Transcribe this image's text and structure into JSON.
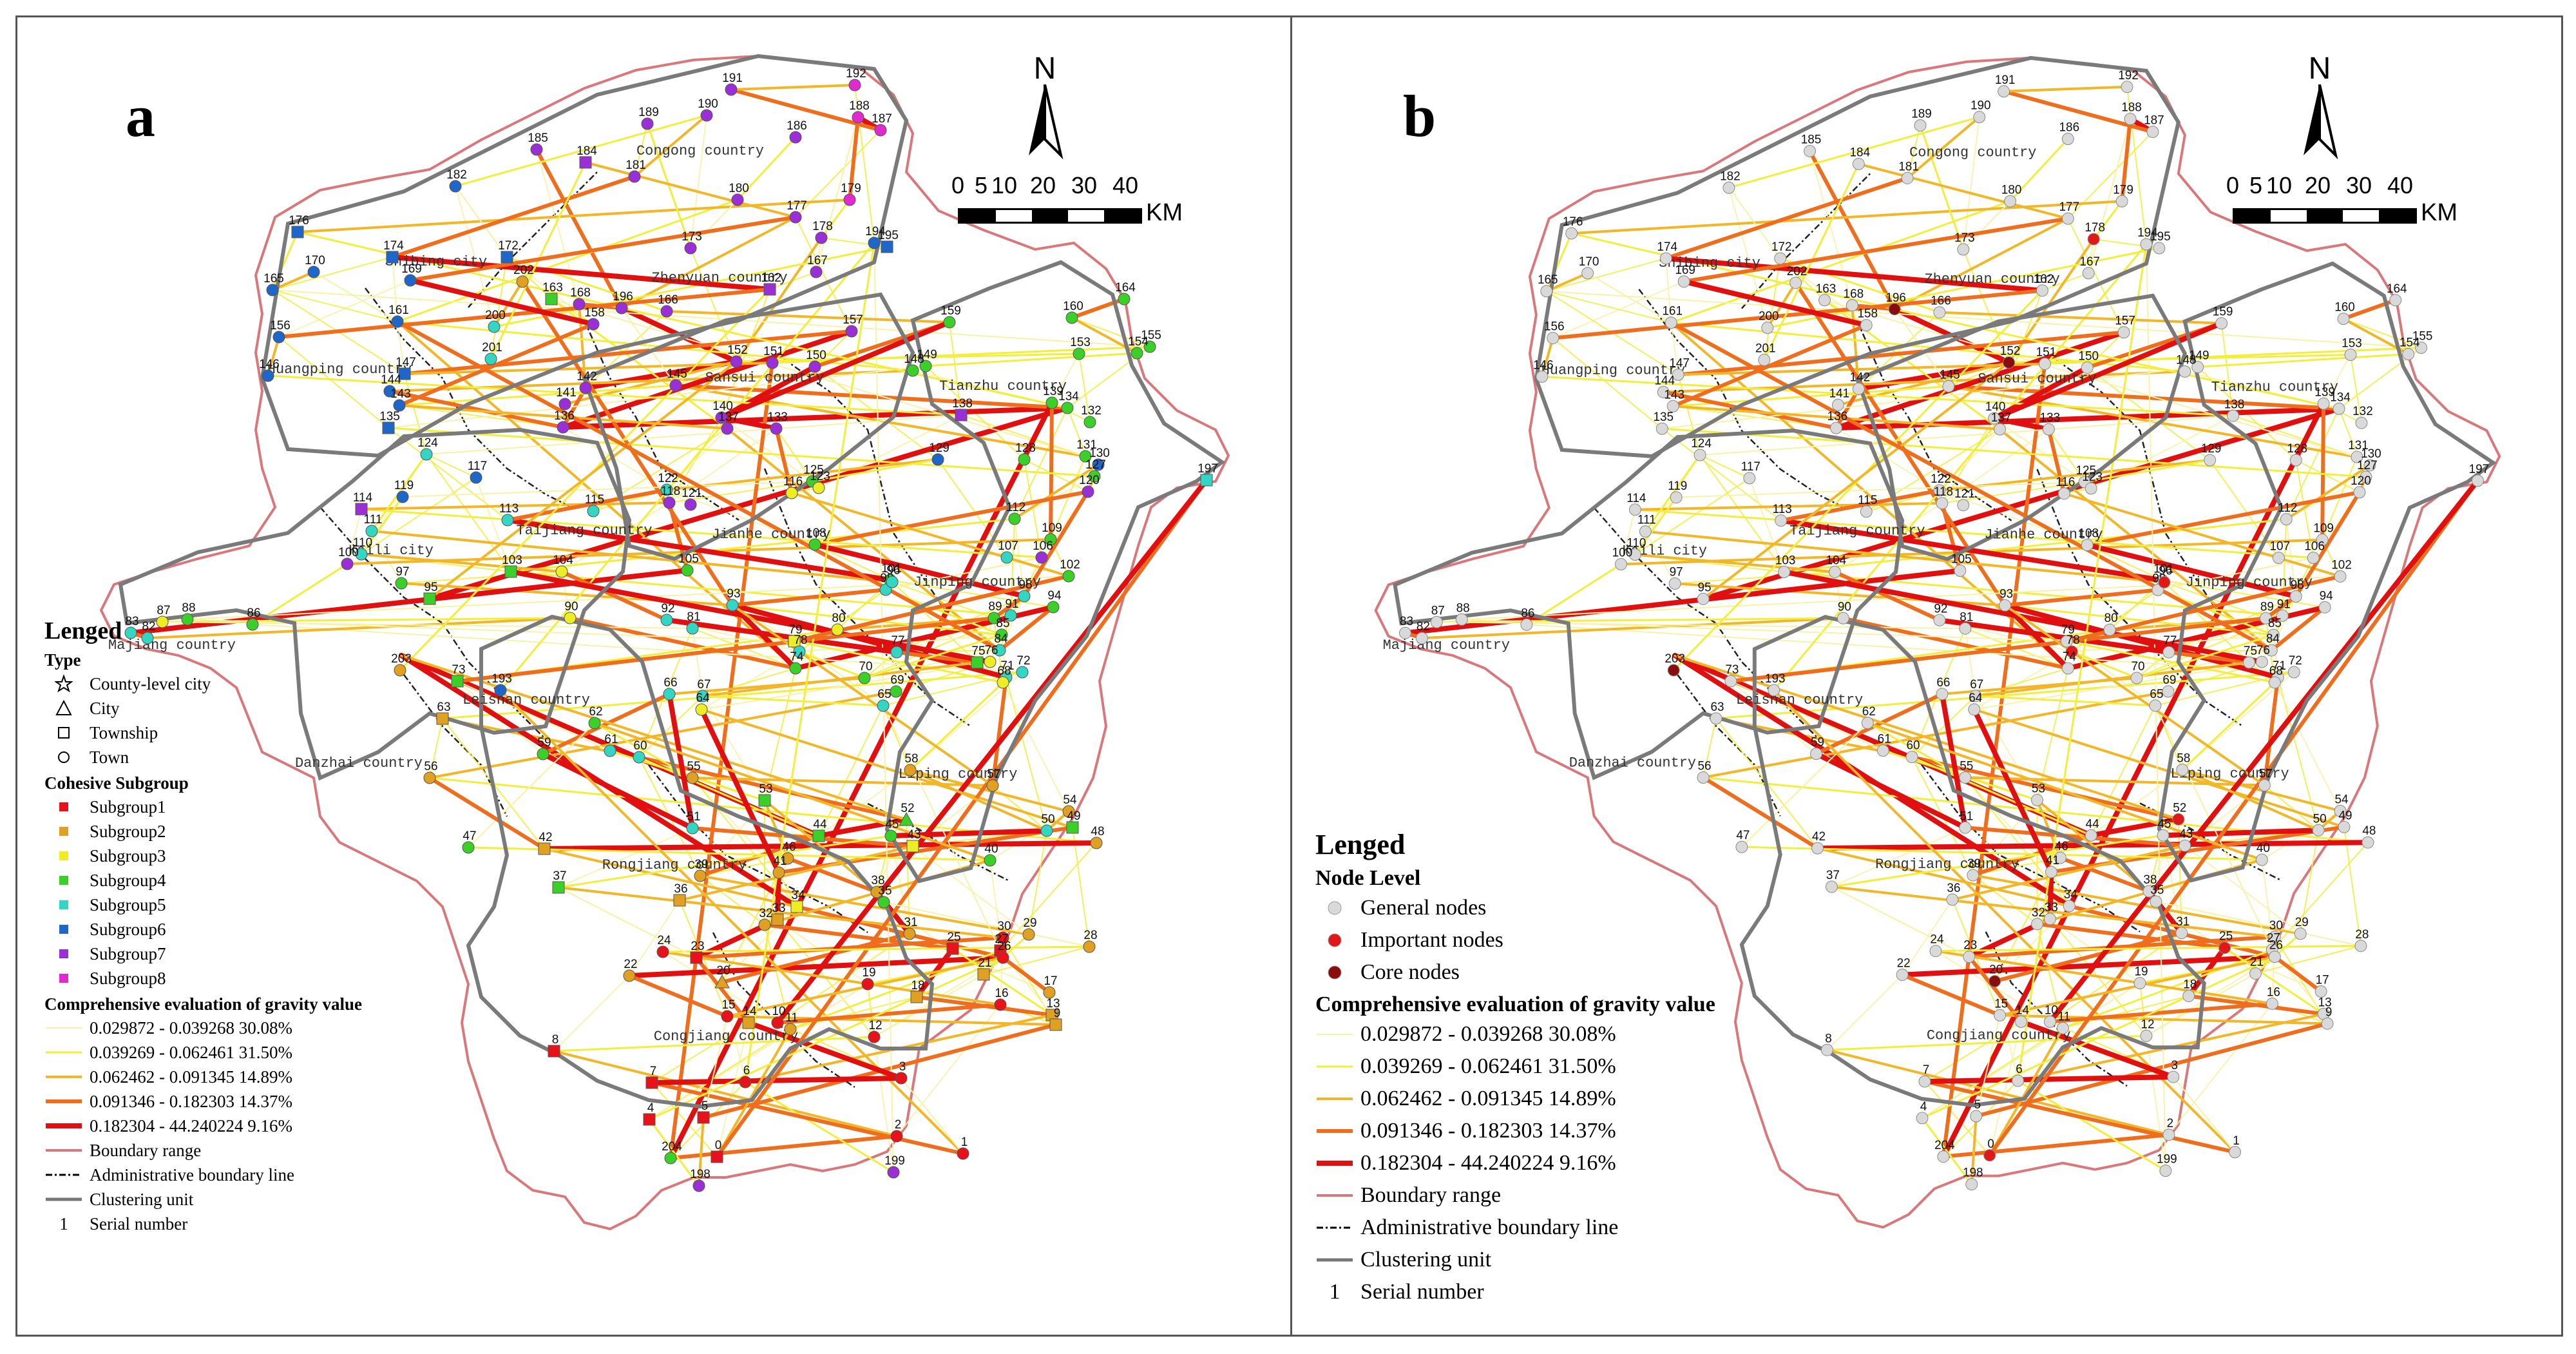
{
  "panel_a": {
    "letter": "a",
    "legend": {
      "title": "Lenged",
      "type_title": "Type",
      "types": [
        {
          "label": "County-level city",
          "icon": "star-icon"
        },
        {
          "label": "City",
          "icon": "triangle-icon"
        },
        {
          "label": "Township",
          "icon": "square-icon"
        },
        {
          "label": "Town",
          "icon": "circle-icon"
        }
      ],
      "subgroup_title": "Cohesive Subgroup",
      "subgroups": [
        {
          "label": "Subgroup1",
          "color": "#e8131a"
        },
        {
          "label": "Subgroup2",
          "color": "#e0a021"
        },
        {
          "label": "Subgroup3",
          "color": "#eded23"
        },
        {
          "label": "Subgroup4",
          "color": "#3bcf2a"
        },
        {
          "label": "Subgroup5",
          "color": "#33d6c2"
        },
        {
          "label": "Subgroup6",
          "color": "#1f66c9"
        },
        {
          "label": "Subgroup7",
          "color": "#9b2fd6"
        },
        {
          "label": "Subgroup8",
          "color": "#e02ad0"
        }
      ],
      "gravity_title": "Comprehensive evaluation of gravity value",
      "gravity": [
        {
          "label": "0.029872 - 0.039268  30.08%",
          "color": "#f6f3a6"
        },
        {
          "label": "0.039269 - 0.062461  31.50%",
          "color": "#f2ee3a"
        },
        {
          "label": "0.062462 - 0.091345  14.89%",
          "color": "#f1b728"
        },
        {
          "label": "0.091346 - 0.182303  14.37%",
          "color": "#ef6e1e"
        },
        {
          "label": "0.182304 - 44.240224  9.16%",
          "color": "#e01010"
        }
      ],
      "boundary_range": "Boundary range",
      "admin_line": "Administrative boundary line",
      "clustering_unit": "Clustering unit",
      "serial_number": "Serial number",
      "serial_example": "1"
    }
  },
  "panel_b": {
    "letter": "b",
    "legend": {
      "title": "Lenged",
      "node_level_title": "Node Level",
      "levels": [
        {
          "label": "General nodes",
          "color": "#d9d9d9"
        },
        {
          "label": "Important nodes",
          "color": "#e01818"
        },
        {
          "label": "Core nodes",
          "color": "#8a0d0d"
        }
      ],
      "gravity_title": "Comprehensive evaluation of gravity value",
      "gravity": [
        {
          "label": "0.029872 - 0.039268  30.08%",
          "color": "#f6f3a6"
        },
        {
          "label": "0.039269 - 0.062461  31.50%",
          "color": "#f2ee3a"
        },
        {
          "label": "0.062462 - 0.091345  14.89%",
          "color": "#f1b728"
        },
        {
          "label": "0.091346 - 0.182303  14.37%",
          "color": "#ef6e1e"
        },
        {
          "label": "0.182304 - 44.240224  9.16%",
          "color": "#e01010"
        }
      ],
      "boundary_range": "Boundary range",
      "admin_line": "Administrative boundary line",
      "clustering_unit": "Clustering unit",
      "serial_number": "Serial number",
      "serial_example": "1"
    }
  },
  "north_label": "N",
  "scale": {
    "ticks": [
      "0",
      "5",
      "10",
      "20",
      "30",
      "40"
    ],
    "unit": "KM"
  },
  "places": [
    "Congong country",
    "Zhenyuan country",
    "Shibing city",
    "Huangping country",
    "Sansui country",
    "Tianzhu country",
    "Taijiang country",
    "Jianhe country",
    "Jinping country",
    "Majiang country",
    "Kaili city",
    "Leishan country",
    "Danzhai country",
    "Rongjiang country",
    "Liping country",
    "Congjiang country"
  ],
  "nodes": [
    {
      "id": "191",
      "g": 7,
      "t": "c",
      "lv": "g"
    },
    {
      "id": "192",
      "g": 8,
      "t": "c",
      "lv": "g"
    },
    {
      "id": "189",
      "g": 7,
      "t": "c",
      "lv": "g"
    },
    {
      "id": "190",
      "g": 7,
      "t": "c",
      "lv": "g"
    },
    {
      "id": "186",
      "g": 7,
      "t": "c",
      "lv": "g"
    },
    {
      "id": "187",
      "g": 8,
      "t": "c",
      "lv": "g"
    },
    {
      "id": "188",
      "g": 8,
      "t": "c",
      "lv": "g"
    },
    {
      "id": "185",
      "g": 7,
      "t": "c",
      "lv": "g"
    },
    {
      "id": "184",
      "g": 7,
      "t": "s",
      "lv": "g"
    },
    {
      "id": "181",
      "g": 7,
      "t": "c",
      "lv": "g"
    },
    {
      "id": "182",
      "g": 6,
      "t": "c",
      "lv": "g"
    },
    {
      "id": "180",
      "g": 7,
      "t": "c",
      "lv": "g"
    },
    {
      "id": "177",
      "g": 7,
      "t": "c",
      "lv": "g"
    },
    {
      "id": "179",
      "g": 8,
      "t": "c",
      "lv": "g"
    },
    {
      "id": "178",
      "g": 7,
      "t": "c",
      "lv": "i"
    },
    {
      "id": "176",
      "g": 6,
      "t": "s",
      "lv": "g"
    },
    {
      "id": "174",
      "g": 6,
      "t": "s",
      "lv": "g"
    },
    {
      "id": "173",
      "g": 7,
      "t": "c",
      "lv": "g"
    },
    {
      "id": "172",
      "g": 6,
      "t": "s",
      "lv": "g"
    },
    {
      "id": "170",
      "g": 6,
      "t": "c",
      "lv": "g"
    },
    {
      "id": "169",
      "g": 6,
      "t": "c",
      "lv": "g"
    },
    {
      "id": "168",
      "g": 7,
      "t": "c",
      "lv": "g"
    },
    {
      "id": "167",
      "g": 7,
      "t": "c",
      "lv": "g"
    },
    {
      "id": "165",
      "g": 6,
      "t": "c",
      "lv": "g"
    },
    {
      "id": "164",
      "g": 4,
      "t": "c",
      "lv": "g"
    },
    {
      "id": "163",
      "g": 4,
      "t": "s",
      "lv": "g"
    },
    {
      "id": "196",
      "g": 7,
      "t": "c",
      "lv": "c"
    },
    {
      "id": "166",
      "g": 7,
      "t": "c",
      "lv": "g"
    },
    {
      "id": "160",
      "g": 4,
      "t": "c",
      "lv": "g"
    },
    {
      "id": "162",
      "g": 7,
      "t": "s",
      "lv": "g"
    },
    {
      "id": "161",
      "g": 6,
      "t": "c",
      "lv": "g"
    },
    {
      "id": "159",
      "g": 4,
      "t": "c",
      "lv": "g"
    },
    {
      "id": "158",
      "g": 7,
      "t": "c",
      "lv": "g"
    },
    {
      "id": "157",
      "g": 7,
      "t": "c",
      "lv": "g"
    },
    {
      "id": "156",
      "g": 6,
      "t": "c",
      "lv": "g"
    },
    {
      "id": "155",
      "g": 4,
      "t": "c",
      "lv": "g"
    },
    {
      "id": "154",
      "g": 4,
      "t": "c",
      "lv": "g"
    },
    {
      "id": "153",
      "g": 4,
      "t": "c",
      "lv": "g"
    },
    {
      "id": "152",
      "g": 7,
      "t": "c",
      "lv": "c"
    },
    {
      "id": "151",
      "g": 7,
      "t": "c",
      "lv": "g"
    },
    {
      "id": "150",
      "g": 7,
      "t": "c",
      "lv": "g"
    },
    {
      "id": "149",
      "g": 4,
      "t": "c",
      "lv": "g"
    },
    {
      "id": "148",
      "g": 4,
      "t": "c",
      "lv": "g"
    },
    {
      "id": "146",
      "g": 6,
      "t": "c",
      "lv": "g"
    },
    {
      "id": "147",
      "g": 6,
      "t": "s",
      "lv": "g"
    },
    {
      "id": "145",
      "g": 7,
      "t": "c",
      "lv": "g"
    },
    {
      "id": "144",
      "g": 6,
      "t": "c",
      "lv": "g"
    },
    {
      "id": "143",
      "g": 6,
      "t": "c",
      "lv": "g"
    },
    {
      "id": "142",
      "g": 7,
      "t": "c",
      "lv": "g"
    },
    {
      "id": "141",
      "g": 7,
      "t": "c",
      "lv": "g"
    },
    {
      "id": "140",
      "g": 7,
      "t": "c",
      "lv": "g"
    },
    {
      "id": "139",
      "g": 4,
      "t": "c",
      "lv": "g"
    },
    {
      "id": "138",
      "g": 7,
      "t": "s",
      "lv": "g"
    },
    {
      "id": "137",
      "g": 7,
      "t": "c",
      "lv": "g"
    },
    {
      "id": "136",
      "g": 7,
      "t": "c",
      "lv": "g"
    },
    {
      "id": "135",
      "g": 6,
      "t": "s",
      "lv": "g"
    },
    {
      "id": "134",
      "g": 4,
      "t": "c",
      "lv": "g"
    },
    {
      "id": "133",
      "g": 7,
      "t": "c",
      "lv": "g"
    },
    {
      "id": "132",
      "g": 4,
      "t": "c",
      "lv": "g"
    },
    {
      "id": "131",
      "g": 4,
      "t": "c",
      "lv": "g"
    },
    {
      "id": "130",
      "g": 6,
      "t": "c",
      "lv": "g"
    },
    {
      "id": "129",
      "g": 6,
      "t": "c",
      "lv": "g"
    },
    {
      "id": "128",
      "g": 4,
      "t": "c",
      "lv": "g"
    },
    {
      "id": "127",
      "g": 4,
      "t": "c",
      "lv": "g"
    },
    {
      "id": "125",
      "g": 4,
      "t": "c",
      "lv": "g"
    },
    {
      "id": "124",
      "g": 5,
      "t": "c",
      "lv": "g"
    },
    {
      "id": "123",
      "g": 3,
      "t": "c",
      "lv": "g"
    },
    {
      "id": "122",
      "g": 5,
      "t": "c",
      "lv": "g"
    },
    {
      "id": "121",
      "g": 7,
      "t": "c",
      "lv": "g"
    },
    {
      "id": "120",
      "g": 7,
      "t": "c",
      "lv": "g"
    },
    {
      "id": "119",
      "g": 6,
      "t": "c",
      "lv": "g"
    },
    {
      "id": "118",
      "g": 7,
      "t": "c",
      "lv": "g"
    },
    {
      "id": "117",
      "g": 6,
      "t": "c",
      "lv": "g"
    },
    {
      "id": "116",
      "g": 3,
      "t": "c",
      "lv": "g"
    },
    {
      "id": "115",
      "g": 5,
      "t": "c",
      "lv": "g"
    },
    {
      "id": "114",
      "g": 7,
      "t": "s",
      "lv": "g"
    },
    {
      "id": "113",
      "g": 5,
      "t": "c",
      "lv": "g"
    },
    {
      "id": "112",
      "g": 4,
      "t": "c",
      "lv": "g"
    },
    {
      "id": "111",
      "g": 5,
      "t": "c",
      "lv": "g"
    },
    {
      "id": "110",
      "g": 5,
      "t": "c",
      "lv": "g"
    },
    {
      "id": "109",
      "g": 4,
      "t": "c",
      "lv": "g"
    },
    {
      "id": "108",
      "g": 4,
      "t": "c",
      "lv": "g"
    },
    {
      "id": "107",
      "g": 5,
      "t": "c",
      "lv": "g"
    },
    {
      "id": "106",
      "g": 7,
      "t": "c",
      "lv": "g"
    },
    {
      "id": "105",
      "g": 4,
      "t": "c",
      "lv": "g"
    },
    {
      "id": "104",
      "g": 3,
      "t": "c",
      "lv": "g"
    },
    {
      "id": "103",
      "g": 4,
      "t": "s",
      "lv": "g"
    },
    {
      "id": "102",
      "g": 4,
      "t": "c",
      "lv": "g"
    },
    {
      "id": "101",
      "g": 4,
      "t": "c",
      "lv": "g"
    },
    {
      "id": "100",
      "g": 7,
      "t": "c",
      "lv": "g"
    },
    {
      "id": "99",
      "g": 5,
      "t": "c",
      "lv": "g"
    },
    {
      "id": "98",
      "g": 5,
      "t": "c",
      "lv": "g"
    },
    {
      "id": "97",
      "g": 4,
      "t": "c",
      "lv": "g"
    },
    {
      "id": "96",
      "g": 5,
      "t": "c",
      "lv": "i"
    },
    {
      "id": "95",
      "g": 4,
      "t": "s",
      "lv": "g"
    },
    {
      "id": "94",
      "g": 4,
      "t": "c",
      "lv": "g"
    },
    {
      "id": "93",
      "g": 5,
      "t": "c",
      "lv": "g"
    },
    {
      "id": "92",
      "g": 5,
      "t": "c",
      "lv": "g"
    },
    {
      "id": "91",
      "g": 5,
      "t": "c",
      "lv": "g"
    },
    {
      "id": "90",
      "g": 3,
      "t": "c",
      "lv": "g"
    },
    {
      "id": "89",
      "g": 4,
      "t": "c",
      "lv": "g"
    },
    {
      "id": "88",
      "g": 4,
      "t": "c",
      "lv": "g"
    },
    {
      "id": "87",
      "g": 3,
      "t": "c",
      "lv": "g"
    },
    {
      "id": "86",
      "g": 4,
      "t": "c",
      "lv": "g"
    },
    {
      "id": "85",
      "g": 4,
      "t": "c",
      "lv": "g"
    },
    {
      "id": "84",
      "g": 5,
      "t": "c",
      "lv": "g"
    },
    {
      "id": "83",
      "g": 5,
      "t": "c",
      "lv": "g"
    },
    {
      "id": "82",
      "g": 5,
      "t": "c",
      "lv": "g"
    },
    {
      "id": "81",
      "g": 5,
      "t": "c",
      "lv": "g"
    },
    {
      "id": "80",
      "g": 3,
      "t": "c",
      "lv": "g"
    },
    {
      "id": "79",
      "g": 3,
      "t": "s",
      "lv": "g"
    },
    {
      "id": "78",
      "g": 5,
      "t": "c",
      "lv": "i"
    },
    {
      "id": "77",
      "g": 5,
      "t": "c",
      "lv": "g"
    },
    {
      "id": "76",
      "g": 3,
      "t": "c",
      "lv": "g"
    },
    {
      "id": "75",
      "g": 4,
      "t": "s",
      "lv": "g"
    },
    {
      "id": "74",
      "g": 4,
      "t": "c",
      "lv": "g"
    },
    {
      "id": "73",
      "g": 4,
      "t": "s",
      "lv": "g"
    },
    {
      "id": "72",
      "g": 5,
      "t": "c",
      "lv": "g"
    },
    {
      "id": "71",
      "g": 5,
      "t": "c",
      "lv": "g"
    },
    {
      "id": "70",
      "g": 4,
      "t": "c",
      "lv": "g"
    },
    {
      "id": "69",
      "g": 4,
      "t": "c",
      "lv": "g"
    },
    {
      "id": "68",
      "g": 3,
      "t": "c",
      "lv": "g"
    },
    {
      "id": "67",
      "g": 5,
      "t": "c",
      "lv": "g"
    },
    {
      "id": "66",
      "g": 5,
      "t": "c",
      "lv": "g"
    },
    {
      "id": "65",
      "g": 5,
      "t": "c",
      "lv": "g"
    },
    {
      "id": "64",
      "g": 3,
      "t": "c",
      "lv": "g"
    },
    {
      "id": "63",
      "g": 2,
      "t": "s",
      "lv": "g"
    },
    {
      "id": "62",
      "g": 4,
      "t": "c",
      "lv": "g"
    },
    {
      "id": "61",
      "g": 5,
      "t": "c",
      "lv": "g"
    },
    {
      "id": "60",
      "g": 5,
      "t": "c",
      "lv": "g"
    },
    {
      "id": "59",
      "g": 4,
      "t": "c",
      "lv": "g"
    },
    {
      "id": "58",
      "g": 2,
      "t": "c",
      "lv": "g"
    },
    {
      "id": "57",
      "g": 2,
      "t": "c",
      "lv": "g"
    },
    {
      "id": "56",
      "g": 2,
      "t": "c",
      "lv": "g"
    },
    {
      "id": "55",
      "g": 2,
      "t": "c",
      "lv": "g"
    },
    {
      "id": "54",
      "g": 2,
      "t": "c",
      "lv": "g"
    },
    {
      "id": "53",
      "g": 4,
      "t": "s",
      "lv": "g"
    },
    {
      "id": "52",
      "g": 4,
      "t": "t",
      "lv": "i"
    },
    {
      "id": "51",
      "g": 5,
      "t": "c",
      "lv": "g"
    },
    {
      "id": "50",
      "g": 5,
      "t": "c",
      "lv": "g"
    },
    {
      "id": "49",
      "g": 4,
      "t": "s",
      "lv": "g"
    },
    {
      "id": "48",
      "g": 2,
      "t": "c",
      "lv": "g"
    },
    {
      "id": "47",
      "g": 4,
      "t": "c",
      "lv": "g"
    },
    {
      "id": "46",
      "g": 2,
      "t": "c",
      "lv": "g"
    },
    {
      "id": "45",
      "g": 4,
      "t": "c",
      "lv": "g"
    },
    {
      "id": "44",
      "g": 4,
      "t": "s",
      "lv": "g"
    },
    {
      "id": "43",
      "g": 3,
      "t": "s",
      "lv": "g"
    },
    {
      "id": "42",
      "g": 2,
      "t": "s",
      "lv": "g"
    },
    {
      "id": "41",
      "g": 2,
      "t": "c",
      "lv": "g"
    },
    {
      "id": "40",
      "g": 4,
      "t": "c",
      "lv": "g"
    },
    {
      "id": "39",
      "g": 2,
      "t": "c",
      "lv": "g"
    },
    {
      "id": "38",
      "g": 2,
      "t": "c",
      "lv": "g"
    },
    {
      "id": "37",
      "g": 4,
      "t": "s",
      "lv": "g"
    },
    {
      "id": "36",
      "g": 2,
      "t": "s",
      "lv": "g"
    },
    {
      "id": "35",
      "g": 4,
      "t": "c",
      "lv": "g"
    },
    {
      "id": "34",
      "g": 3,
      "t": "s",
      "lv": "g"
    },
    {
      "id": "33",
      "g": 2,
      "t": "s",
      "lv": "g"
    },
    {
      "id": "32",
      "g": 2,
      "t": "c",
      "lv": "g"
    },
    {
      "id": "31",
      "g": 2,
      "t": "c",
      "lv": "g"
    },
    {
      "id": "30",
      "g": 1,
      "t": "c",
      "lv": "g"
    },
    {
      "id": "29",
      "g": 2,
      "t": "c",
      "lv": "g"
    },
    {
      "id": "28",
      "g": 2,
      "t": "c",
      "lv": "g"
    },
    {
      "id": "27",
      "g": 1,
      "t": "s",
      "lv": "g"
    },
    {
      "id": "26",
      "g": 1,
      "t": "c",
      "lv": "g"
    },
    {
      "id": "25",
      "g": 1,
      "t": "s",
      "lv": "i"
    },
    {
      "id": "24",
      "g": 1,
      "t": "c",
      "lv": "g"
    },
    {
      "id": "23",
      "g": 1,
      "t": "s",
      "lv": "g"
    },
    {
      "id": "22",
      "g": 2,
      "t": "c",
      "lv": "g"
    },
    {
      "id": "21",
      "g": 2,
      "t": "s",
      "lv": "g"
    },
    {
      "id": "20",
      "g": 2,
      "t": "t",
      "lv": "c"
    },
    {
      "id": "19",
      "g": 1,
      "t": "c",
      "lv": "g"
    },
    {
      "id": "18",
      "g": 2,
      "t": "s",
      "lv": "g"
    },
    {
      "id": "17",
      "g": 2,
      "t": "c",
      "lv": "g"
    },
    {
      "id": "16",
      "g": 1,
      "t": "c",
      "lv": "g"
    },
    {
      "id": "15",
      "g": 1,
      "t": "c",
      "lv": "g"
    },
    {
      "id": "14",
      "g": 2,
      "t": "s",
      "lv": "g"
    },
    {
      "id": "13",
      "g": 2,
      "t": "s",
      "lv": "g"
    },
    {
      "id": "12",
      "g": 1,
      "t": "c",
      "lv": "g"
    },
    {
      "id": "11",
      "g": 2,
      "t": "c",
      "lv": "g"
    },
    {
      "id": "10",
      "g": 1,
      "t": "c",
      "lv": "g"
    },
    {
      "id": "9",
      "g": 2,
      "t": "s",
      "lv": "g"
    },
    {
      "id": "8",
      "g": 1,
      "t": "s",
      "lv": "g"
    },
    {
      "id": "7",
      "g": 1,
      "t": "s",
      "lv": "g"
    },
    {
      "id": "6",
      "g": 1,
      "t": "c",
      "lv": "g"
    },
    {
      "id": "5",
      "g": 1,
      "t": "s",
      "lv": "g"
    },
    {
      "id": "4",
      "g": 1,
      "t": "s",
      "lv": "g"
    },
    {
      "id": "3",
      "g": 1,
      "t": "c",
      "lv": "g"
    },
    {
      "id": "2",
      "g": 1,
      "t": "c",
      "lv": "g"
    },
    {
      "id": "1",
      "g": 1,
      "t": "c",
      "lv": "g"
    },
    {
      "id": "0",
      "g": 1,
      "t": "s",
      "lv": "i"
    },
    {
      "id": "204",
      "g": 4,
      "t": "c",
      "lv": "g"
    },
    {
      "id": "199",
      "g": 7,
      "t": "c",
      "lv": "g"
    },
    {
      "id": "198",
      "g": 7,
      "t": "c",
      "lv": "g"
    },
    {
      "id": "197",
      "g": 5,
      "t": "s",
      "lv": "g"
    },
    {
      "id": "195",
      "g": 6,
      "t": "s",
      "lv": "g"
    },
    {
      "id": "194",
      "g": 6,
      "t": "c",
      "lv": "g"
    },
    {
      "id": "193",
      "g": 6,
      "t": "c",
      "lv": "g"
    },
    {
      "id": "200",
      "g": 5,
      "t": "c",
      "lv": "g"
    },
    {
      "id": "201",
      "g": 5,
      "t": "c",
      "lv": "g"
    },
    {
      "id": "202",
      "g": 2,
      "t": "c",
      "lv": "g"
    },
    {
      "id": "203",
      "g": 2,
      "t": "c",
      "lv": "c"
    }
  ]
}
